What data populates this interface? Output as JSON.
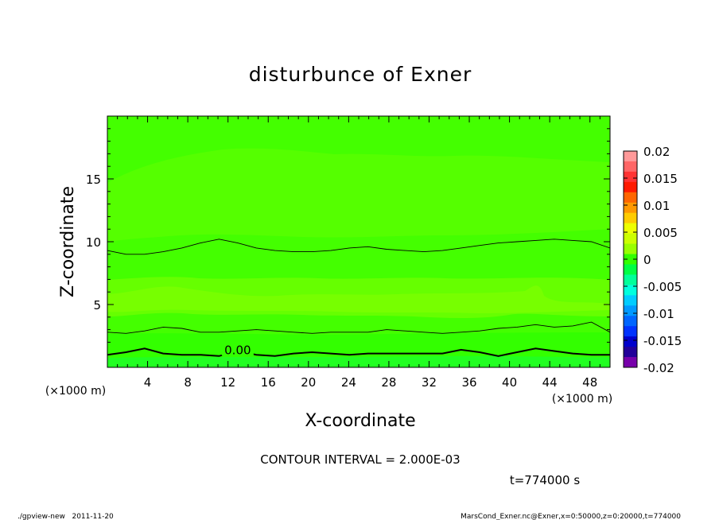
{
  "chart_data": {
    "type": "contour",
    "title": "disturbunce of Exner",
    "xlabel": "X-coordinate",
    "ylabel": "Z-coordinate",
    "x_unit": "(×1000 m)",
    "y_unit": "(×1000 m)",
    "xlim": [
      0,
      50
    ],
    "ylim": [
      0,
      20
    ],
    "x_ticks": [
      4,
      8,
      12,
      16,
      20,
      24,
      28,
      32,
      36,
      40,
      44,
      48
    ],
    "y_ticks": [
      5,
      10,
      15
    ],
    "colorbar": {
      "ticks": [
        "0.02",
        "0.015",
        "0.01",
        "0.005",
        "0",
        "-0.005",
        "-0.01",
        "-0.015",
        "-0.02"
      ],
      "levels": [
        0.02,
        0.018,
        0.016,
        0.014,
        0.012,
        0.01,
        0.008,
        0.006,
        0.004,
        0.002,
        0.0,
        -0.002,
        -0.004,
        -0.006,
        -0.008,
        -0.01,
        -0.012,
        -0.014,
        -0.016,
        -0.018,
        -0.02
      ],
      "colors": [
        "#ff9999",
        "#ff6666",
        "#ff3333",
        "#ff1a00",
        "#ff6600",
        "#ff9900",
        "#ffcc00",
        "#eeff00",
        "#ccff00",
        "#99ff00",
        "#33ff00",
        "#00ff44",
        "#00ff99",
        "#00ffdd",
        "#00ccff",
        "#0099ff",
        "#0066ff",
        "#0033ff",
        "#0000cc",
        "#220099",
        "#7700aa"
      ]
    },
    "contour_lines": [
      {
        "z": [
          1.0,
          1.2,
          1.5,
          1.1,
          1.0,
          1.0,
          0.9,
          1.3,
          1.0,
          0.9,
          1.1,
          1.2,
          1.1,
          1.0,
          1.1,
          1.1,
          1.1,
          1.1,
          1.1,
          1.4,
          1.2,
          0.9,
          1.2,
          1.5,
          1.3,
          1.1,
          1.0,
          1.0
        ],
        "label": "0.00",
        "bold": true
      },
      {
        "z": [
          2.8,
          2.7,
          2.9,
          3.2,
          3.1,
          2.8,
          2.8,
          2.9,
          3.0,
          2.9,
          2.8,
          2.7,
          2.8,
          2.8,
          2.8,
          3.0,
          2.9,
          2.8,
          2.7,
          2.8,
          2.9,
          3.1,
          3.2,
          3.4,
          3.2,
          3.3,
          3.6,
          2.8
        ]
      },
      {
        "z": [
          9.3,
          9.0,
          9.0,
          9.2,
          9.5,
          9.9,
          10.2,
          9.9,
          9.5,
          9.3,
          9.2,
          9.2,
          9.3,
          9.5,
          9.6,
          9.4,
          9.3,
          9.2,
          9.3,
          9.5,
          9.7,
          9.9,
          10.0,
          10.1,
          10.2,
          10.1,
          10.0,
          9.5
        ]
      }
    ],
    "annotations": [
      "CONTOUR INTERVAL = 2.000E-03",
      "t=774000 s"
    ]
  },
  "footer": {
    "left": "./gpview-new   2011-11-20",
    "right": "MarsCond_Exner.nc@Exner,x=0:50000,z=0:20000,t=774000"
  }
}
